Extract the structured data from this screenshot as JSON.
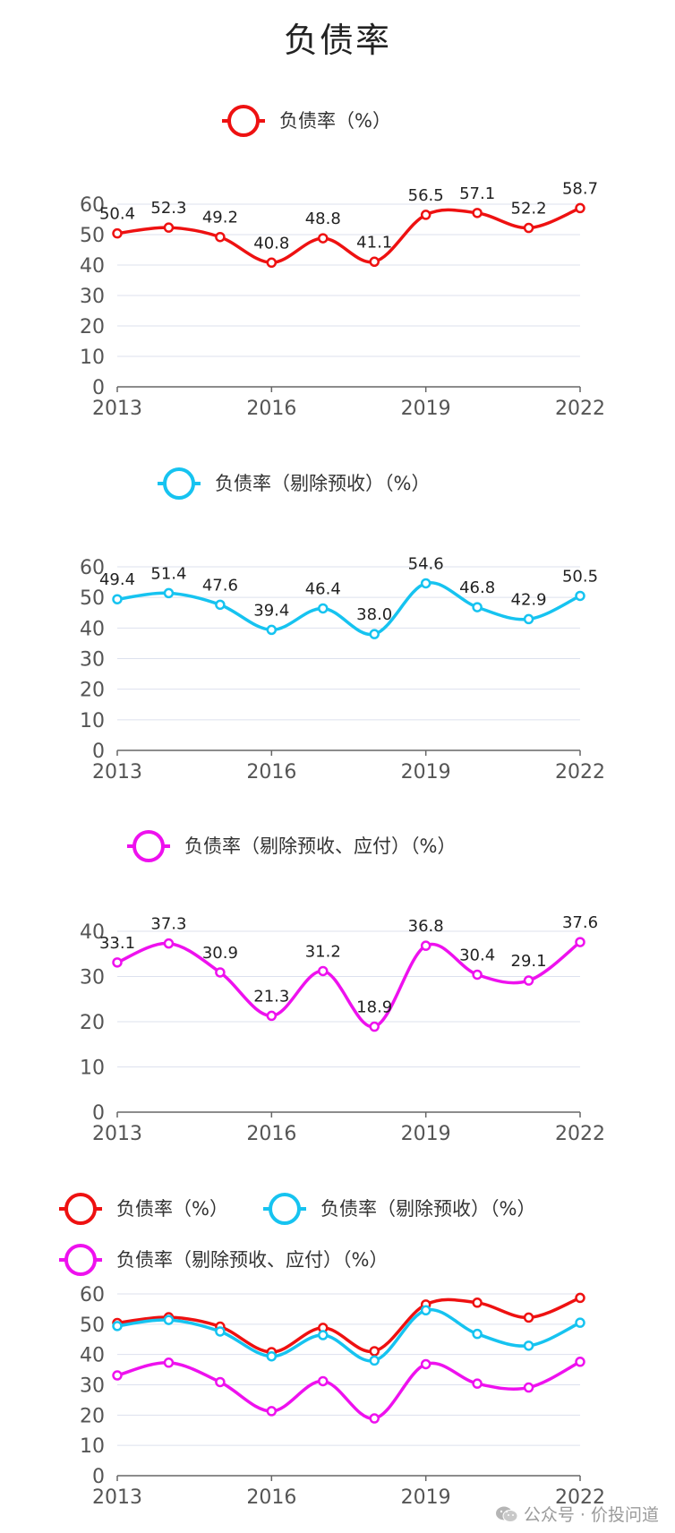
{
  "title": "负债率",
  "colors": {
    "red": "#ee1111",
    "cyan": "#16c3f0",
    "magenta": "#ee11ee",
    "grid": "#dde1ee",
    "axis": "#666666"
  },
  "watermark": {
    "text": "公众号 · 价投问道",
    "icon": "wechat-icon"
  },
  "chart_data": [
    {
      "type": "line",
      "legend": [
        "负债率（%）"
      ],
      "x": [
        2013,
        2014,
        2015,
        2016,
        2017,
        2018,
        2019,
        2020,
        2021,
        2022
      ],
      "xticks": [
        "2013",
        "2016",
        "2019",
        "2022"
      ],
      "yticks": [
        0,
        10,
        20,
        30,
        40,
        50,
        60
      ],
      "ylim": [
        0,
        60
      ],
      "grid": true,
      "data_labels": true,
      "series": [
        {
          "name": "负债率（%）",
          "color": "#ee1111",
          "values": [
            50.4,
            52.3,
            49.2,
            40.8,
            48.8,
            41.1,
            56.5,
            57.1,
            52.2,
            58.7
          ],
          "labels": [
            "50.4",
            "52.3",
            "49.2",
            "40.8",
            "48.8",
            "41.1",
            "56.5",
            "57.1",
            "52.2",
            "58.7"
          ]
        }
      ]
    },
    {
      "type": "line",
      "legend": [
        "负债率（剔除预收）（%）"
      ],
      "x": [
        2013,
        2014,
        2015,
        2016,
        2017,
        2018,
        2019,
        2020,
        2021,
        2022
      ],
      "xticks": [
        "2013",
        "2016",
        "2019",
        "2022"
      ],
      "yticks": [
        0,
        10,
        20,
        30,
        40,
        50,
        60
      ],
      "ylim": [
        0,
        60
      ],
      "grid": true,
      "data_labels": true,
      "series": [
        {
          "name": "负债率（剔除预收）（%）",
          "color": "#16c3f0",
          "values": [
            49.4,
            51.4,
            47.6,
            39.4,
            46.4,
            38.0,
            54.6,
            46.8,
            42.9,
            50.5
          ],
          "labels": [
            "49.4",
            "51.4",
            "47.6",
            "39.4",
            "46.4",
            "38.0",
            "54.6",
            "46.8",
            "42.9",
            "50.5"
          ]
        }
      ]
    },
    {
      "type": "line",
      "legend": [
        "负债率（剔除预收、应付）（%）"
      ],
      "x": [
        2013,
        2014,
        2015,
        2016,
        2017,
        2018,
        2019,
        2020,
        2021,
        2022
      ],
      "xticks": [
        "2013",
        "2016",
        "2019",
        "2022"
      ],
      "yticks": [
        0,
        10,
        20,
        30,
        40
      ],
      "ylim": [
        0,
        40
      ],
      "grid": true,
      "data_labels": true,
      "series": [
        {
          "name": "负债率（剔除预收、应付）（%）",
          "color": "#ee11ee",
          "values": [
            33.1,
            37.3,
            30.9,
            21.3,
            31.2,
            18.9,
            36.8,
            30.4,
            29.1,
            37.6
          ],
          "labels": [
            "33.1",
            "37.3",
            "30.9",
            "21.3",
            "31.2",
            "18.9",
            "36.8",
            "30.4",
            "29.1",
            "37.6"
          ]
        }
      ]
    },
    {
      "type": "line",
      "legend": [
        "负债率（%）",
        "负债率（剔除预收）（%）",
        "负债率（剔除预收、应付）（%）"
      ],
      "x": [
        2013,
        2014,
        2015,
        2016,
        2017,
        2018,
        2019,
        2020,
        2021,
        2022
      ],
      "xticks": [
        "2013",
        "2016",
        "2019",
        "2022"
      ],
      "yticks": [
        0,
        10,
        20,
        30,
        40,
        50,
        60
      ],
      "ylim": [
        0,
        60
      ],
      "grid": true,
      "data_labels": false,
      "series": [
        {
          "name": "负债率（%）",
          "color": "#ee1111",
          "values": [
            50.4,
            52.3,
            49.2,
            40.8,
            48.8,
            41.1,
            56.5,
            57.1,
            52.2,
            58.7
          ]
        },
        {
          "name": "负债率（剔除预收）（%）",
          "color": "#16c3f0",
          "values": [
            49.4,
            51.4,
            47.6,
            39.4,
            46.4,
            38.0,
            54.6,
            46.8,
            42.9,
            50.5
          ]
        },
        {
          "name": "负债率（剔除预收、应付）（%）",
          "color": "#ee11ee",
          "values": [
            33.1,
            37.3,
            30.9,
            21.3,
            31.2,
            18.9,
            36.8,
            30.4,
            29.1,
            37.6
          ]
        }
      ]
    }
  ]
}
